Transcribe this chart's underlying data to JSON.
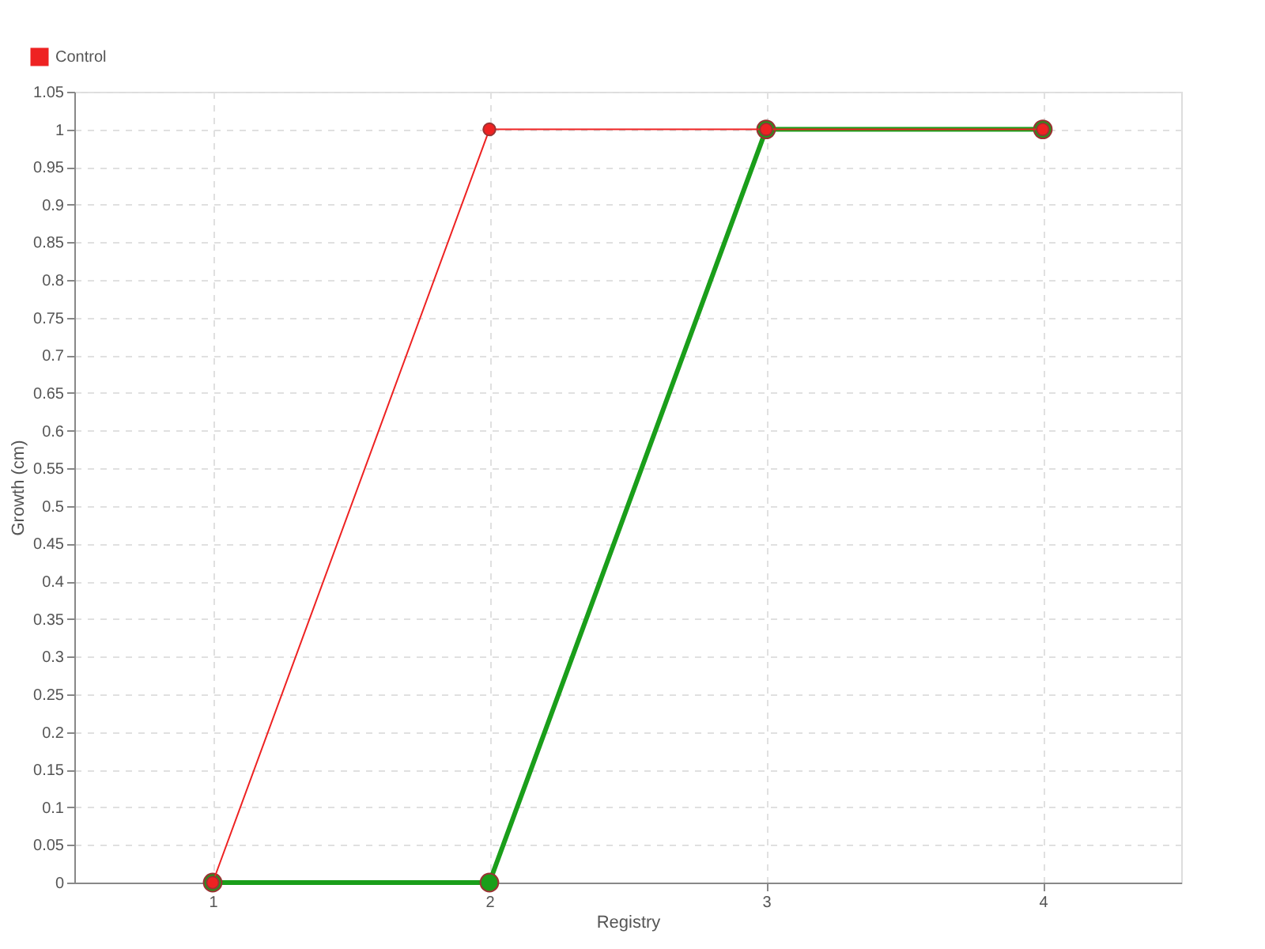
{
  "chart_data": {
    "type": "line",
    "xlabel": "Registry",
    "ylabel": "Growth (cm)",
    "x": [
      1,
      2,
      3,
      4
    ],
    "series": [
      {
        "color": "#1a9e1a",
        "values": [
          0,
          0,
          1,
          1
        ]
      },
      {
        "name": "Control",
        "color": "#ee2222",
        "values": [
          0,
          1,
          1,
          1
        ]
      }
    ],
    "xlim": [
      0.5,
      4.5
    ],
    "xticks": [
      1,
      2,
      3,
      4
    ],
    "ylim": [
      0,
      1.05
    ],
    "yticks": [
      0,
      0.05,
      0.1,
      0.15,
      0.2,
      0.25,
      0.3,
      0.35,
      0.4,
      0.45,
      0.5,
      0.55,
      0.6,
      0.65,
      0.7,
      0.75,
      0.8,
      0.85,
      0.9,
      0.95,
      1,
      1.05
    ],
    "grid": true,
    "legend": "top left",
    "marker": "circle",
    "line_style": "solid"
  }
}
